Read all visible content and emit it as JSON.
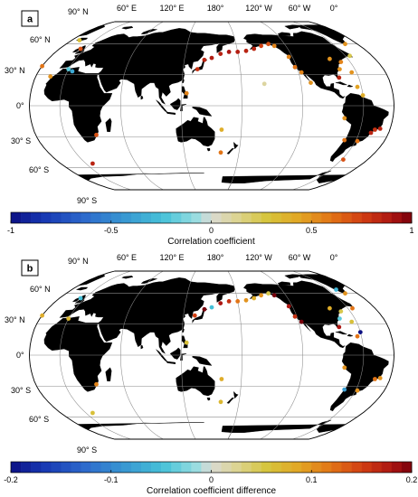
{
  "panels": [
    {
      "letter": "a",
      "colorbar": {
        "title": "Correlation coefficient",
        "ticks": [
          "-1",
          "-0.5",
          "0",
          "0.5",
          "1"
        ],
        "min": -1,
        "max": 1
      },
      "lat_labels": [
        "90° N",
        "60° N",
        "30° N",
        "0°",
        "30° S",
        "60° S",
        "90° S"
      ],
      "lon_labels": [
        "60° E",
        "120° E",
        "180°",
        "120° W",
        "60° W",
        "0°"
      ],
      "stations": [
        {
          "lon": 142,
          "lat": 44,
          "value": 0.85
        },
        {
          "lon": 150,
          "lat": 46,
          "value": 0.88
        },
        {
          "lon": 160,
          "lat": 50,
          "value": 0.86
        },
        {
          "lon": 170,
          "lat": 52,
          "value": 0.9
        },
        {
          "lon": 180,
          "lat": 52,
          "value": 0.87
        },
        {
          "lon": -170,
          "lat": 53,
          "value": 0.85
        },
        {
          "lon": -160,
          "lat": 55,
          "value": 0.84
        },
        {
          "lon": -150,
          "lat": 58,
          "value": 0.75
        },
        {
          "lon": -140,
          "lat": 60,
          "value": 0.7
        },
        {
          "lon": -134,
          "lat": 58,
          "value": 0.55
        },
        {
          "lon": 135,
          "lat": 35,
          "value": 0.8
        },
        {
          "lon": 125,
          "lat": 12,
          "value": 0.55
        },
        {
          "lon": 160,
          "lat": -23,
          "value": 0.4
        },
        {
          "lon": 160,
          "lat": -45,
          "value": 0.6
        },
        {
          "lon": -157,
          "lat": 21,
          "value": 0.1
        },
        {
          "lon": -124,
          "lat": 47,
          "value": 0.55
        },
        {
          "lon": -122,
          "lat": 37,
          "value": 0.6
        },
        {
          "lon": -117,
          "lat": 32,
          "value": 0.55
        },
        {
          "lon": -110,
          "lat": 22,
          "value": 0.5
        },
        {
          "lon": -80,
          "lat": 45,
          "value": 0.5
        },
        {
          "lon": -70,
          "lat": 42,
          "value": 0.55
        },
        {
          "lon": -76,
          "lat": 35,
          "value": 0.5
        },
        {
          "lon": -80,
          "lat": 27,
          "value": 0.85
        },
        {
          "lon": -65,
          "lat": 32,
          "value": 0.5
        },
        {
          "lon": -64,
          "lat": 18,
          "value": 0.45
        },
        {
          "lon": -60,
          "lat": 10,
          "value": 0.4
        },
        {
          "lon": -55,
          "lat": 48,
          "value": 0.25
        },
        {
          "lon": -45,
          "lat": 60,
          "value": 0.5
        },
        {
          "lon": -30,
          "lat": 38,
          "value": 0.6
        },
        {
          "lon": -15,
          "lat": 28,
          "value": 0.5
        },
        {
          "lon": -5,
          "lat": 55,
          "value": 0.7
        },
        {
          "lon": -20,
          "lat": 64,
          "value": 0.3
        },
        {
          "lon": 0,
          "lat": 35,
          "value": -0.2
        },
        {
          "lon": 5,
          "lat": 33,
          "value": -0.35
        },
        {
          "lon": -78,
          "lat": -12,
          "value": 0.5
        },
        {
          "lon": -72,
          "lat": -33,
          "value": 0.6
        },
        {
          "lon": -58,
          "lat": -34,
          "value": 0.6
        },
        {
          "lon": -45,
          "lat": -23,
          "value": 0.8
        },
        {
          "lon": -48,
          "lat": -26,
          "value": 0.85
        },
        {
          "lon": -40,
          "lat": -22,
          "value": 0.85
        },
        {
          "lon": -58,
          "lat": -52,
          "value": 0.7
        },
        {
          "lon": 32,
          "lat": -28,
          "value": 0.7
        },
        {
          "lon": 8,
          "lat": -56,
          "value": 0.85
        }
      ]
    },
    {
      "letter": "b",
      "colorbar": {
        "title": "Correlation coefficient difference",
        "ticks": [
          "-0.2",
          "-0.1",
          "0",
          "0.1",
          "0.2"
        ],
        "min": -0.2,
        "max": 0.2
      },
      "lat_labels": [
        "90° N",
        "60° N",
        "30° N",
        "0°",
        "30° S",
        "60° S",
        "90° S"
      ],
      "lon_labels": [
        "60° E",
        "120° E",
        "180°",
        "120° W",
        "60° W",
        "0°"
      ],
      "stations": [
        {
          "lon": 142,
          "lat": 44,
          "value": 0.2
        },
        {
          "lon": 132,
          "lat": 38,
          "value": 0.15
        },
        {
          "lon": 150,
          "lat": 46,
          "value": -0.05
        },
        {
          "lon": 160,
          "lat": 50,
          "value": 0.18
        },
        {
          "lon": 170,
          "lat": 52,
          "value": 0.16
        },
        {
          "lon": 180,
          "lat": 52,
          "value": 0.12
        },
        {
          "lon": -170,
          "lat": 53,
          "value": 0.1
        },
        {
          "lon": -160,
          "lat": 55,
          "value": 0.08
        },
        {
          "lon": -150,
          "lat": 58,
          "value": 0.1
        },
        {
          "lon": -140,
          "lat": 60,
          "value": 0.05
        },
        {
          "lon": -134,
          "lat": 58,
          "value": 0.22
        },
        {
          "lon": 125,
          "lat": 12,
          "value": 0.06
        },
        {
          "lon": 160,
          "lat": -23,
          "value": 0.08
        },
        {
          "lon": 160,
          "lat": -45,
          "value": 0.07
        },
        {
          "lon": -124,
          "lat": 47,
          "value": 0.18
        },
        {
          "lon": -122,
          "lat": 37,
          "value": 0.16
        },
        {
          "lon": -117,
          "lat": 32,
          "value": 0.2
        },
        {
          "lon": -80,
          "lat": 45,
          "value": 0.08
        },
        {
          "lon": -70,
          "lat": 42,
          "value": 0.05
        },
        {
          "lon": -76,
          "lat": 35,
          "value": -0.04
        },
        {
          "lon": -80,
          "lat": 27,
          "value": 0.18
        },
        {
          "lon": -65,
          "lat": 32,
          "value": 0.06
        },
        {
          "lon": -64,
          "lat": 18,
          "value": 0.12
        },
        {
          "lon": -60,
          "lat": 22,
          "value": -0.2
        },
        {
          "lon": -55,
          "lat": 45,
          "value": 0.12
        },
        {
          "lon": -45,
          "lat": 60,
          "value": 0.1
        },
        {
          "lon": -50,
          "lat": 64,
          "value": -0.06
        },
        {
          "lon": -30,
          "lat": 38,
          "value": 0.08
        },
        {
          "lon": -5,
          "lat": 55,
          "value": -0.05
        },
        {
          "lon": 0,
          "lat": 35,
          "value": 0.07
        },
        {
          "lon": -78,
          "lat": -12,
          "value": 0.1
        },
        {
          "lon": -72,
          "lat": -33,
          "value": -0.08
        },
        {
          "lon": -58,
          "lat": -34,
          "value": 0.1
        },
        {
          "lon": -45,
          "lat": -23,
          "value": 0.12
        },
        {
          "lon": -40,
          "lat": -22,
          "value": 0.1
        },
        {
          "lon": 32,
          "lat": -28,
          "value": 0.11
        },
        {
          "lon": 8,
          "lat": -56,
          "value": 0.06
        }
      ]
    }
  ]
}
